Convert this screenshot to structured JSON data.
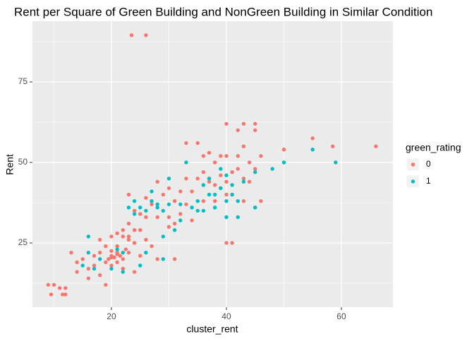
{
  "chart_data": {
    "type": "scatter",
    "title": "Rent per Square of Green Building and NonGreen Building in Similar Condition",
    "x_label": "cluster_rent",
    "y_label": "Rent",
    "legend_title": "green_rating",
    "xlim": [
      6.26,
      68.96
    ],
    "ylim": [
      5.04,
      93.86
    ],
    "xticks": [
      20,
      40,
      60
    ],
    "yticks": [
      25,
      50,
      75
    ],
    "grid": true,
    "legend_position": "right",
    "series": [
      {
        "name": "0",
        "color": "#F8766D",
        "x": [
          23.5,
          26,
          9,
          10,
          9.5,
          11,
          12,
          11.5,
          12,
          13,
          14,
          14,
          15,
          16,
          16,
          17,
          17,
          18,
          18,
          18,
          19,
          19,
          19,
          20,
          20,
          20,
          21,
          21,
          21,
          22,
          22,
          22,
          23,
          23,
          23,
          24,
          24,
          24,
          25,
          25,
          26,
          26,
          27,
          27,
          28,
          28,
          28,
          29,
          30,
          30,
          31,
          31,
          32,
          33,
          33,
          33,
          34,
          34,
          35,
          35,
          36,
          36,
          36,
          37,
          38,
          38,
          39,
          39,
          40,
          40,
          40,
          40,
          40,
          41,
          41,
          41,
          42,
          42,
          42,
          43,
          43,
          43,
          43,
          44,
          44,
          45,
          45,
          45,
          45,
          46,
          46,
          50,
          55,
          58.5,
          66,
          19.5,
          20.5,
          21.5,
          22.5,
          20,
          21,
          21,
          20,
          22,
          23,
          24,
          25,
          26,
          23,
          30,
          31,
          32,
          37,
          38,
          39
        ],
        "y": [
          89.5,
          89.5,
          12,
          12,
          9,
          11,
          11,
          9,
          9,
          22,
          19,
          16,
          20,
          14,
          17,
          21,
          18,
          15,
          22,
          26,
          24,
          19,
          12,
          27,
          21,
          18,
          28,
          22,
          24,
          29,
          20,
          17,
          22,
          31,
          26,
          35,
          29,
          16,
          29,
          21,
          33,
          26,
          37,
          24,
          44,
          33,
          20,
          40,
          42,
          30,
          38,
          20,
          34,
          56,
          45,
          37,
          41,
          32,
          45,
          56,
          47,
          52,
          38,
          53,
          43,
          38,
          46,
          42,
          62,
          52,
          44,
          40,
          25,
          25,
          47,
          40,
          60,
          52,
          48,
          62,
          55,
          45,
          38,
          50,
          44,
          62,
          60,
          48,
          36,
          38,
          52,
          54,
          57.5,
          55,
          55,
          20,
          20.5,
          21,
          23,
          22.5,
          19,
          21.5,
          20.5,
          27,
          27,
          25,
          34,
          39,
          40,
          33,
          31,
          41,
          44,
          50,
          52
        ]
      },
      {
        "name": "1",
        "color": "#00BFC4",
        "x": [
          15,
          16,
          16,
          17,
          18,
          20,
          21,
          22,
          22,
          23,
          24,
          24,
          25,
          26,
          27,
          27,
          28,
          28,
          29,
          29,
          29,
          30,
          31,
          32,
          33,
          34,
          35,
          35,
          36,
          36,
          37,
          37,
          38,
          38,
          39,
          39,
          40,
          40,
          40,
          41,
          41,
          42,
          42,
          43,
          45,
          45,
          48,
          50,
          55,
          59,
          32,
          30,
          26,
          25
        ],
        "y": [
          18,
          22,
          27,
          17,
          20,
          17,
          23,
          16,
          22,
          36,
          38,
          34,
          36,
          35,
          41,
          38,
          37,
          36,
          35,
          27,
          20,
          45,
          29,
          37,
          50,
          36,
          35,
          38,
          43,
          35,
          45,
          40,
          40,
          36,
          42,
          48,
          46,
          38,
          33,
          43,
          40,
          38,
          33,
          44,
          47,
          36,
          48,
          50,
          54,
          50,
          32,
          37,
          22,
          18
        ]
      }
    ]
  }
}
